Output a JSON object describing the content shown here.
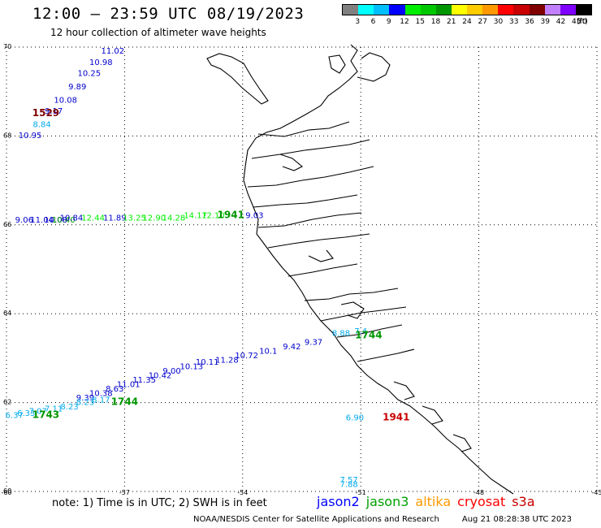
{
  "header": {
    "title": "12:00 – 23:59 UTC 08/19/2023",
    "subtitle": "12 hour collection of altimeter wave heights"
  },
  "colorbar": {
    "colors": [
      "#808080",
      "#00ffff",
      "#00bfff",
      "#0000ff",
      "#00ee00",
      "#00c800",
      "#009600",
      "#ffff00",
      "#ffcc00",
      "#ff9900",
      "#ff0000",
      "#c80000",
      "#800000",
      "#c080ff",
      "#8000ff",
      "#000000"
    ],
    "labels": [
      "3",
      "6",
      "9",
      "12",
      "15",
      "18",
      "21",
      "24",
      "27",
      "30",
      "33",
      "36",
      "39",
      "42",
      "45",
      "70",
      "(ft)"
    ]
  },
  "axes": {
    "lat_labels": [
      "70",
      "68",
      "66",
      "64",
      "62",
      "60"
    ],
    "lon_labels": [
      "-60",
      "-57",
      "-54",
      "-51",
      "-48",
      "-45"
    ],
    "lat_range": [
      60,
      70
    ],
    "lon_range": [
      -60,
      -45
    ]
  },
  "tracks": [
    {
      "satellite": "jason2",
      "time_label": "1529",
      "color": "#800000",
      "label_pos": [
        -59.0,
        68.45
      ],
      "points": [
        {
          "lon": -57.3,
          "lat": 69.85,
          "value": "11.02",
          "color": "#0000cc"
        },
        {
          "lon": -57.6,
          "lat": 69.6,
          "value": "10.98",
          "color": "#0000cc"
        },
        {
          "lon": -57.9,
          "lat": 69.35,
          "value": "10.25",
          "color": "#0000cc"
        },
        {
          "lon": -58.2,
          "lat": 69.05,
          "value": "9.89",
          "color": "#0000cc"
        },
        {
          "lon": -58.5,
          "lat": 68.75,
          "value": "10.08",
          "color": "#0000cc"
        },
        {
          "lon": -58.8,
          "lat": 68.5,
          "value": "9.17",
          "color": "#0000cc"
        },
        {
          "lon": -59.1,
          "lat": 68.2,
          "value": "8.84",
          "color": "#00aaee"
        },
        {
          "lon": -59.4,
          "lat": 67.95,
          "value": "10.95",
          "color": "#0000cc"
        }
      ]
    },
    {
      "satellite": "jason3",
      "time_label": "1941",
      "color": "#009600",
      "label_pos": [
        -54.3,
        66.15
      ],
      "points": [
        {
          "lon": -59.55,
          "lat": 66.05,
          "value": "9.06",
          "color": "#0000cc"
        },
        {
          "lon": -59.1,
          "lat": 66.05,
          "value": "11.04",
          "color": "#0000cc"
        },
        {
          "lon": -58.75,
          "lat": 66.05,
          "value": "10.08",
          "color": "#0000cc"
        },
        {
          "lon": -58.55,
          "lat": 66.05,
          "value": "10.40",
          "color": "#009600"
        },
        {
          "lon": -58.35,
          "lat": 66.1,
          "value": "10.84",
          "color": "#0000cc"
        },
        {
          "lon": -57.8,
          "lat": 66.1,
          "value": "12.44",
          "color": "#00ee00"
        },
        {
          "lon": -57.25,
          "lat": 66.1,
          "value": "11.89",
          "color": "#0000cc"
        },
        {
          "lon": -56.75,
          "lat": 66.1,
          "value": "13.25",
          "color": "#00ee00"
        },
        {
          "lon": -56.25,
          "lat": 66.1,
          "value": "12.90",
          "color": "#00ee00"
        },
        {
          "lon": -55.75,
          "lat": 66.1,
          "value": "14.28",
          "color": "#00ee00"
        },
        {
          "lon": -55.2,
          "lat": 66.15,
          "value": "14.17",
          "color": "#00ee00"
        },
        {
          "lon": -54.75,
          "lat": 66.15,
          "value": "12.10",
          "color": "#00ee00"
        },
        {
          "lon": -53.7,
          "lat": 66.15,
          "value": "9.03",
          "color": "#0000cc"
        }
      ]
    },
    {
      "satellite": "jason3",
      "time_label": "1744",
      "color": "#009600",
      "label_pos": [
        -50.8,
        63.45
      ],
      "points": [
        {
          "lon": -51.5,
          "lat": 63.5,
          "value": "8.88",
          "color": "#00aaee"
        },
        {
          "lon": -51.0,
          "lat": 63.55,
          "value": "7.4",
          "color": "#00aaee"
        },
        {
          "lon": -52.2,
          "lat": 63.3,
          "value": "9.37",
          "color": "#0000cc"
        },
        {
          "lon": -52.75,
          "lat": 63.2,
          "value": "9.42",
          "color": "#0000cc"
        },
        {
          "lon": -53.35,
          "lat": 63.1,
          "value": "10.1",
          "color": "#0000cc"
        },
        {
          "lon": -53.9,
          "lat": 63.0,
          "value": "10.72",
          "color": "#0000cc"
        },
        {
          "lon": -54.4,
          "lat": 62.9,
          "value": "11.28",
          "color": "#0000cc"
        },
        {
          "lon": -54.9,
          "lat": 62.85,
          "value": "10.11",
          "color": "#0000cc"
        },
        {
          "lon": -55.3,
          "lat": 62.75,
          "value": "10.13",
          "color": "#0000cc"
        },
        {
          "lon": -55.8,
          "lat": 62.65,
          "value": "9.00",
          "color": "#0000cc"
        },
        {
          "lon": -56.1,
          "lat": 62.55,
          "value": "10.42",
          "color": "#0000cc"
        },
        {
          "lon": -56.5,
          "lat": 62.45,
          "value": "11.35",
          "color": "#0000cc"
        },
        {
          "lon": -56.9,
          "lat": 62.35,
          "value": "11.01",
          "color": "#0000cc"
        },
        {
          "lon": -57.25,
          "lat": 62.25,
          "value": "8.63",
          "color": "#0000cc"
        },
        {
          "lon": -57.6,
          "lat": 62.15,
          "value": "10.38",
          "color": "#0000cc"
        },
        {
          "lon": -58.0,
          "lat": 62.05,
          "value": "9.39",
          "color": "#0000cc"
        }
      ]
    },
    {
      "satellite": "jason3",
      "time_label": "1744",
      "color": "#009600",
      "label_pos": [
        -57.0,
        61.95
      ],
      "points": [
        {
          "lon": -57.6,
          "lat": 62.0,
          "value": "8.17",
          "color": "#00aaee"
        },
        {
          "lon": -58.0,
          "lat": 61.95,
          "value": "8.23",
          "color": "#00aaee"
        },
        {
          "lon": -58.4,
          "lat": 61.85,
          "value": "8.23",
          "color": "#00aaee"
        }
      ]
    },
    {
      "satellite": "jason3",
      "time_label": "1743",
      "color": "#009600",
      "label_pos": [
        -59.0,
        61.65
      ],
      "points": [
        {
          "lon": -58.8,
          "lat": 61.8,
          "value": "7.11",
          "color": "#00aaee"
        },
        {
          "lon": -59.2,
          "lat": 61.75,
          "value": "7.07",
          "color": "#00aaee"
        },
        {
          "lon": -59.5,
          "lat": 61.7,
          "value": "6.33",
          "color": "#00aaee"
        },
        {
          "lon": -59.8,
          "lat": 61.65,
          "value": "6.37",
          "color": "#00aaee"
        }
      ]
    },
    {
      "satellite": "cryosat",
      "time_label": "1941",
      "color": "#c80000",
      "label_pos": [
        -50.1,
        61.6
      ],
      "points": [
        {
          "lon": -51.15,
          "lat": 61.6,
          "value": "6.90",
          "color": "#00aaee"
        },
        {
          "lon": -51.3,
          "lat": 60.2,
          "value": "7.57",
          "color": "#00aaee"
        },
        {
          "lon": -51.3,
          "lat": 60.1,
          "value": "7.88",
          "color": "#00aaee"
        }
      ]
    }
  ],
  "note": "note:  1) Time is in UTC; 2) SWH is in feet",
  "legend": [
    {
      "label": "jason2",
      "color": "#0000ff"
    },
    {
      "label": "jason3",
      "color": "#00a000"
    },
    {
      "label": "altika",
      "color": "#ff9900"
    },
    {
      "label": "cryosat",
      "color": "#ff0000"
    },
    {
      "label": "s3a",
      "color": "#c80000"
    }
  ],
  "credit": {
    "org": "NOAA/NESDIS Center for Satellite Applications and Research",
    "timestamp": "Aug 21 08:28:38 UTC 2023"
  }
}
